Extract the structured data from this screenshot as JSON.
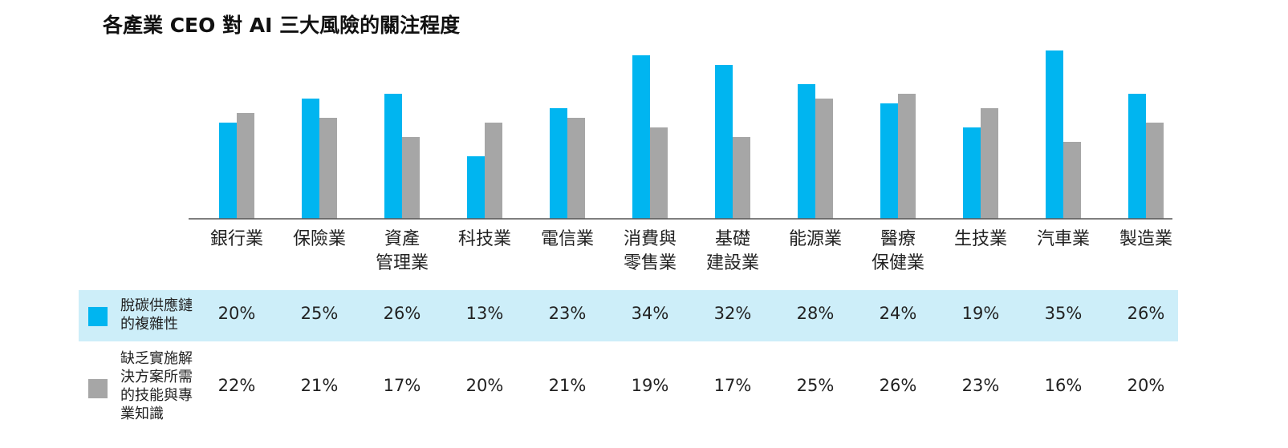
{
  "chart_data": {
    "type": "bar",
    "title": "各產業 CEO 對 AI 三大風險的關注程度",
    "categories": [
      "銀行業",
      "保險業",
      "資產\n管理業",
      "科技業",
      "電信業",
      "消費與\n零售業",
      "基礎\n建設業",
      "能源業",
      "醫療\n保健業",
      "生技業",
      "汽車業",
      "製造業"
    ],
    "series": [
      {
        "name": "脫碳供應鏈的複雜性",
        "color": "#00b5f0",
        "values": [
          20,
          25,
          26,
          13,
          23,
          34,
          32,
          28,
          24,
          19,
          35,
          26
        ],
        "value_labels": [
          "20%",
          "25%",
          "26%",
          "13%",
          "23%",
          "34%",
          "32%",
          "28%",
          "24%",
          "19%",
          "35%",
          "26%"
        ]
      },
      {
        "name": "缺乏實施解決方案所需的技能與專業知識",
        "color": "#a6a6a6",
        "values": [
          22,
          21,
          17,
          20,
          21,
          19,
          17,
          25,
          26,
          23,
          16,
          20
        ],
        "value_labels": [
          "22%",
          "21%",
          "17%",
          "20%",
          "21%",
          "19%",
          "17%",
          "25%",
          "26%",
          "23%",
          "16%",
          "20%"
        ]
      }
    ],
    "ylim": [
      0,
      35
    ]
  }
}
